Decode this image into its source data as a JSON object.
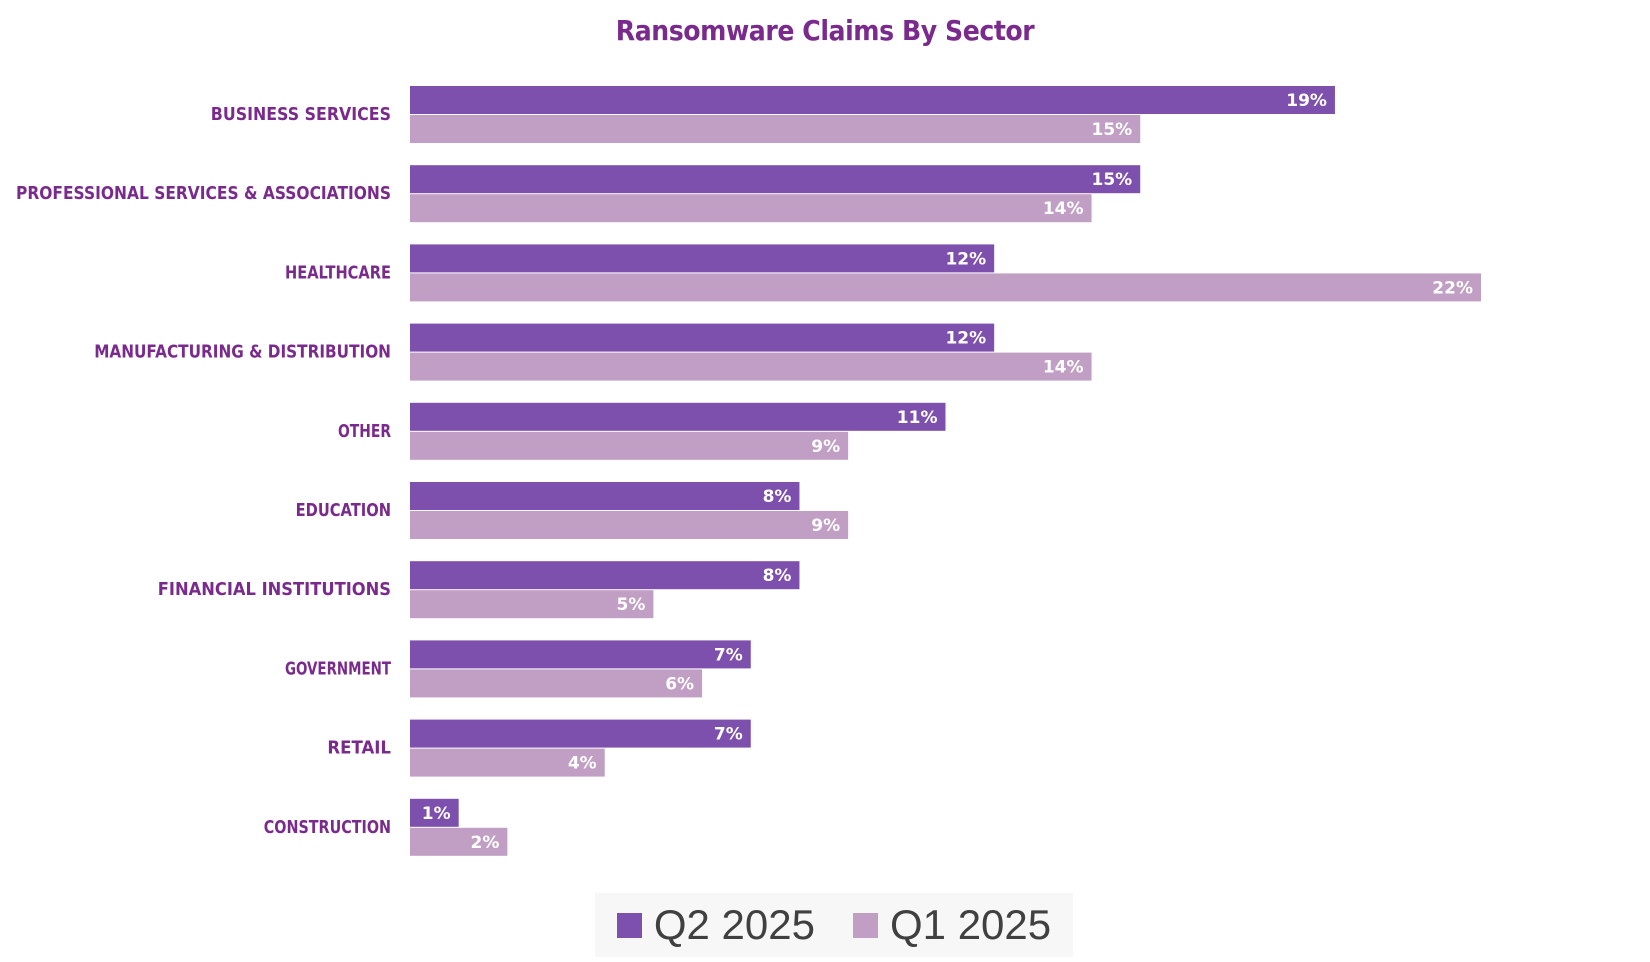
{
  "chart_data": {
    "type": "bar",
    "orientation": "horizontal",
    "title": "Ransomware Claims By Sector",
    "categories": [
      "BUSINESS SERVICES",
      "PROFESSIONAL SERVICES & ASSOCIATIONS",
      "HEALTHCARE",
      "MANUFACTURING & DISTRIBUTION",
      "OTHER",
      "EDUCATION",
      "FINANCIAL INSTITUTIONS",
      "GOVERNMENT",
      "RETAIL",
      "CONSTRUCTION"
    ],
    "series": [
      {
        "name": "Q2 2025",
        "color": "#7d50ad",
        "values": [
          19,
          15,
          12,
          12,
          11,
          8,
          8,
          7,
          7,
          1
        ]
      },
      {
        "name": "Q1 2025",
        "color": "#c19fc4",
        "values": [
          15,
          14,
          22,
          14,
          9,
          9,
          5,
          6,
          4,
          2
        ]
      }
    ],
    "value_suffix": "%",
    "xlim": [
      0,
      22
    ],
    "grid": false,
    "legend_position": "bottom",
    "category_label_color": "#7a2a8c",
    "data_label_color": "#ffffff"
  }
}
